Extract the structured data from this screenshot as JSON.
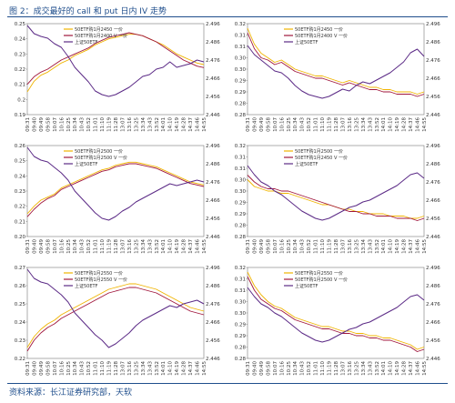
{
  "figure": {
    "title": "图 2：成交最好的 call 和 put 日内 IV 走势",
    "source": "资料来源：长江证券研究部，天软"
  },
  "colors": {
    "call": "#f0b400",
    "put": "#a0163c",
    "etf": "#5b2a86"
  },
  "chart_data": [
    {
      "type": "line",
      "position": "top-left",
      "time_labels": [
        "09:31",
        "09:40",
        "09:49",
        "09:58",
        "10:07",
        "10:16",
        "10:25",
        "10:34",
        "10:43",
        "10:52",
        "11:01",
        "11:10",
        "11:19",
        "11:28",
        "13:07",
        "13:16",
        "13:25",
        "13:34",
        "13:43",
        "13:52",
        "14:01",
        "14:10",
        "14:19",
        "14:28",
        "14:37",
        "14:46",
        "14:55"
      ],
      "ylim": [
        0.19,
        0.25
      ],
      "yticks": [
        "0.25",
        "0.24",
        "0.23",
        "0.22",
        "0.21",
        "0.2",
        "0.19"
      ],
      "y2lim": [
        0.2446,
        0.2496
      ],
      "y2ticks": [
        "2.496",
        "2.486",
        "2.476",
        "2.466",
        "2.456",
        "2.446"
      ],
      "legend_placement": "top-center",
      "series": [
        {
          "name": "50ETF购1月2450 一价",
          "axis": "left",
          "color_key": "call",
          "values": [
            0.205,
            0.212,
            0.216,
            0.218,
            0.221,
            0.224,
            0.226,
            0.229,
            0.231,
            0.233,
            0.236,
            0.238,
            0.24,
            0.241,
            0.242,
            0.243,
            0.243,
            0.242,
            0.24,
            0.238,
            0.236,
            0.233,
            0.23,
            0.228,
            0.226,
            0.224,
            0.223
          ]
        },
        {
          "name": "50ETF购1月2400 V 一价",
          "axis": "left",
          "color_key": "put",
          "values": [
            0.21,
            0.215,
            0.218,
            0.22,
            0.223,
            0.226,
            0.228,
            0.23,
            0.232,
            0.234,
            0.237,
            0.239,
            0.241,
            0.242,
            0.243,
            0.244,
            0.243,
            0.242,
            0.24,
            0.238,
            0.235,
            0.232,
            0.229,
            0.226,
            0.224,
            0.222,
            0.221
          ]
        },
        {
          "name": "上证50ETF",
          "axis": "right",
          "color_key": "etf",
          "values": [
            2.495,
            2.4905,
            2.489,
            2.488,
            2.485,
            2.483,
            2.478,
            2.472,
            2.468,
            2.464,
            2.459,
            2.457,
            2.456,
            2.457,
            2.459,
            2.461,
            2.464,
            2.467,
            2.468,
            2.471,
            2.472,
            2.475,
            2.472,
            2.473,
            2.474,
            2.476,
            2.475
          ]
        }
      ]
    },
    {
      "type": "line",
      "position": "top-right",
      "time_labels": [
        "09:31",
        "09:40",
        "09:49",
        "09:58",
        "10:07",
        "10:16",
        "10:25",
        "10:34",
        "10:43",
        "10:52",
        "11:01",
        "11:10",
        "11:19",
        "11:28",
        "13:07",
        "13:16",
        "13:25",
        "13:34",
        "13:43",
        "13:52",
        "14:01",
        "14:10",
        "14:19",
        "14:28",
        "14:37",
        "14:46",
        "14:55"
      ],
      "ylim": [
        0.28,
        0.32
      ],
      "yticks": [
        "0.32",
        "0.31",
        "0.31",
        "0.30",
        "0.30",
        "0.29",
        "0.29",
        "0.28",
        "0.28"
      ],
      "y2lim": [
        0.2446,
        0.2496
      ],
      "y2ticks": [
        "2.496",
        "2.486",
        "2.476",
        "2.466",
        "2.456",
        "2.446"
      ],
      "legend_placement": "top-center",
      "series": [
        {
          "name": "50ETF购1月2450 一价",
          "axis": "left",
          "color_key": "call",
          "values": [
            0.318,
            0.311,
            0.307,
            0.305,
            0.303,
            0.304,
            0.302,
            0.3,
            0.299,
            0.298,
            0.297,
            0.297,
            0.296,
            0.295,
            0.294,
            0.295,
            0.294,
            0.293,
            0.292,
            0.292,
            0.291,
            0.291,
            0.29,
            0.29,
            0.29,
            0.289,
            0.29
          ]
        },
        {
          "name": "50ETF购1月2400 V 一价",
          "axis": "left",
          "color_key": "put",
          "values": [
            0.316,
            0.309,
            0.305,
            0.304,
            0.302,
            0.303,
            0.301,
            0.299,
            0.298,
            0.297,
            0.296,
            0.296,
            0.295,
            0.294,
            0.293,
            0.294,
            0.293,
            0.292,
            0.291,
            0.291,
            0.29,
            0.29,
            0.289,
            0.289,
            0.289,
            0.288,
            0.289
          ]
        },
        {
          "name": "上证50ETF",
          "axis": "right",
          "color_key": "etf",
          "values": [
            2.484,
            2.479,
            2.476,
            2.473,
            2.47,
            2.469,
            2.466,
            2.462,
            2.459,
            2.457,
            2.456,
            2.455,
            2.456,
            2.458,
            2.46,
            2.459,
            2.462,
            2.464,
            2.463,
            2.465,
            2.467,
            2.469,
            2.472,
            2.475,
            2.48,
            2.482,
            2.478
          ]
        }
      ]
    },
    {
      "type": "line",
      "position": "middle-left",
      "time_labels": [
        "09:31",
        "09:40",
        "09:49",
        "09:58",
        "10:07",
        "10:16",
        "10:25",
        "10:34",
        "10:43",
        "10:52",
        "11:01",
        "11:10",
        "11:19",
        "11:28",
        "13:07",
        "13:16",
        "13:25",
        "13:34",
        "13:43",
        "13:52",
        "14:01",
        "14:10",
        "14:19",
        "14:28",
        "14:37",
        "14:46",
        "14:55"
      ],
      "ylim": [
        0.2,
        0.26
      ],
      "yticks": [
        "0.26",
        "0.25",
        "0.24",
        "0.23",
        "0.22",
        "0.21",
        "0.20"
      ],
      "y2lim": [
        0.2446,
        0.2496
      ],
      "y2ticks": [
        "2.496",
        "2.486",
        "2.476",
        "2.466",
        "2.456",
        "2.446"
      ],
      "legend_placement": "top-center",
      "series": [
        {
          "name": "50ETF购1月2500 一价",
          "axis": "left",
          "color_key": "call",
          "values": [
            0.215,
            0.22,
            0.224,
            0.226,
            0.228,
            0.232,
            0.234,
            0.236,
            0.238,
            0.24,
            0.242,
            0.244,
            0.245,
            0.247,
            0.248,
            0.249,
            0.249,
            0.248,
            0.247,
            0.246,
            0.244,
            0.242,
            0.24,
            0.238,
            0.236,
            0.235,
            0.234
          ]
        },
        {
          "name": "50ETF购1月2500 V 一价",
          "axis": "left",
          "color_key": "put",
          "values": [
            0.213,
            0.218,
            0.222,
            0.225,
            0.227,
            0.231,
            0.233,
            0.235,
            0.237,
            0.239,
            0.241,
            0.243,
            0.244,
            0.246,
            0.247,
            0.248,
            0.248,
            0.247,
            0.246,
            0.245,
            0.243,
            0.241,
            0.239,
            0.237,
            0.235,
            0.234,
            0.233
          ]
        },
        {
          "name": "上证50ETF",
          "axis": "right",
          "color_key": "etf",
          "values": [
            2.495,
            2.49,
            2.488,
            2.487,
            2.484,
            2.481,
            2.477,
            2.471,
            2.467,
            2.463,
            2.459,
            2.456,
            2.455,
            2.457,
            2.46,
            2.462,
            2.465,
            2.467,
            2.469,
            2.471,
            2.473,
            2.475,
            2.474,
            2.475,
            2.476,
            2.477,
            2.476
          ]
        }
      ]
    },
    {
      "type": "line",
      "position": "middle-right",
      "time_labels": [
        "09:31",
        "09:40",
        "09:49",
        "09:58",
        "10:07",
        "10:16",
        "10:25",
        "10:34",
        "10:43",
        "10:52",
        "11:01",
        "11:10",
        "11:19",
        "11:28",
        "13:07",
        "13:16",
        "13:25",
        "13:34",
        "13:43",
        "13:52",
        "14:01",
        "14:10",
        "14:19",
        "14:28",
        "14:37",
        "14:46",
        "14:55"
      ],
      "ylim": [
        0.28,
        0.32
      ],
      "yticks": [
        "0.32",
        "0.31",
        "0.31",
        "0.30",
        "0.30",
        "0.29",
        "0.29",
        "0.28",
        "0.28"
      ],
      "y2lim": [
        0.2446,
        0.2496
      ],
      "y2ticks": [
        "2.496",
        "2.486",
        "2.476",
        "2.466",
        "2.456",
        "2.446"
      ],
      "legend_placement": "top-center",
      "series": [
        {
          "name": "50ETF购1月2500 一价",
          "axis": "left",
          "color_key": "call",
          "values": [
            0.305,
            0.302,
            0.301,
            0.3,
            0.3,
            0.299,
            0.299,
            0.298,
            0.297,
            0.296,
            0.295,
            0.294,
            0.294,
            0.293,
            0.292,
            0.292,
            0.291,
            0.291,
            0.29,
            0.29,
            0.29,
            0.289,
            0.289,
            0.289,
            0.288,
            0.288,
            0.289
          ]
        },
        {
          "name": "50ETF购1月2450 V 一价",
          "axis": "left",
          "color_key": "put",
          "values": [
            0.307,
            0.304,
            0.302,
            0.301,
            0.301,
            0.3,
            0.3,
            0.299,
            0.298,
            0.297,
            0.296,
            0.295,
            0.294,
            0.293,
            0.292,
            0.291,
            0.291,
            0.29,
            0.29,
            0.289,
            0.289,
            0.289,
            0.288,
            0.288,
            0.288,
            0.287,
            0.288
          ]
        },
        {
          "name": "上证50ETF",
          "axis": "right",
          "color_key": "etf",
          "values": [
            2.485,
            2.48,
            2.476,
            2.474,
            2.471,
            2.469,
            2.466,
            2.463,
            2.46,
            2.458,
            2.456,
            2.455,
            2.456,
            2.458,
            2.46,
            2.462,
            2.463,
            2.465,
            2.466,
            2.468,
            2.47,
            2.472,
            2.474,
            2.477,
            2.48,
            2.481,
            2.478
          ]
        }
      ]
    },
    {
      "type": "line",
      "position": "bottom-left",
      "time_labels": [
        "09:31",
        "09:40",
        "09:49",
        "09:58",
        "10:07",
        "10:16",
        "10:25",
        "10:34",
        "10:43",
        "10:52",
        "11:01",
        "11:10",
        "11:19",
        "11:28",
        "13:07",
        "13:16",
        "13:25",
        "13:34",
        "13:43",
        "13:52",
        "14:01",
        "14:10",
        "14:19",
        "14:28",
        "14:37",
        "14:46",
        "14:55"
      ],
      "ylim": [
        0.22,
        0.27
      ],
      "yticks": [
        "0.27",
        "0.26",
        "0.25",
        "0.24",
        "0.23",
        "0.22"
      ],
      "y2lim": [
        0.2446,
        0.2496
      ],
      "y2ticks": [
        "2.496",
        "2.486",
        "2.476",
        "2.466",
        "2.456",
        "2.446"
      ],
      "legend_placement": "top-center",
      "series": [
        {
          "name": "50ETF购1月2550 一价",
          "axis": "left",
          "color_key": "call",
          "values": [
            0.226,
            0.232,
            0.236,
            0.239,
            0.241,
            0.244,
            0.246,
            0.248,
            0.25,
            0.252,
            0.254,
            0.256,
            0.258,
            0.259,
            0.26,
            0.261,
            0.261,
            0.26,
            0.259,
            0.258,
            0.256,
            0.254,
            0.252,
            0.25,
            0.248,
            0.247,
            0.246
          ]
        },
        {
          "name": "50ETF购1月2550 V 一价",
          "axis": "left",
          "color_key": "put",
          "values": [
            0.224,
            0.23,
            0.234,
            0.237,
            0.239,
            0.242,
            0.244,
            0.246,
            0.248,
            0.25,
            0.252,
            0.254,
            0.256,
            0.257,
            0.258,
            0.259,
            0.259,
            0.258,
            0.257,
            0.256,
            0.254,
            0.252,
            0.25,
            0.248,
            0.246,
            0.245,
            0.244
          ]
        },
        {
          "name": "上证50ETF",
          "axis": "right",
          "color_key": "etf",
          "values": [
            2.495,
            2.49,
            2.488,
            2.487,
            2.484,
            2.481,
            2.477,
            2.471,
            2.467,
            2.463,
            2.459,
            2.456,
            2.452,
            2.454,
            2.457,
            2.46,
            2.464,
            2.467,
            2.469,
            2.471,
            2.473,
            2.475,
            2.474,
            2.476,
            2.477,
            2.478,
            2.476
          ]
        }
      ]
    },
    {
      "type": "line",
      "position": "bottom-right",
      "time_labels": [
        "09:31",
        "09:40",
        "09:49",
        "09:58",
        "10:07",
        "10:16",
        "10:25",
        "10:34",
        "10:43",
        "10:52",
        "11:01",
        "11:10",
        "11:19",
        "11:28",
        "13:07",
        "13:16",
        "13:25",
        "13:34",
        "13:43",
        "13:52",
        "14:01",
        "14:10",
        "14:19",
        "14:28",
        "14:37",
        "14:46",
        "14:55"
      ],
      "ylim": [
        0.28,
        0.32
      ],
      "yticks": [
        "0.32",
        "0.31",
        "0.31",
        "0.30",
        "0.30",
        "0.29",
        "0.29",
        "0.28",
        "0.28"
      ],
      "y2lim": [
        0.2446,
        0.2496
      ],
      "y2ticks": [
        "2.496",
        "2.486",
        "2.476",
        "2.466",
        "2.456",
        "2.446"
      ],
      "legend_placement": "top-center",
      "series": [
        {
          "name": "50ETF购1月2550 一价",
          "axis": "left",
          "color_key": "call",
          "values": [
            0.318,
            0.312,
            0.308,
            0.305,
            0.303,
            0.302,
            0.3,
            0.298,
            0.297,
            0.296,
            0.295,
            0.294,
            0.294,
            0.293,
            0.292,
            0.292,
            0.291,
            0.291,
            0.29,
            0.29,
            0.289,
            0.289,
            0.288,
            0.287,
            0.286,
            0.284,
            0.285
          ]
        },
        {
          "name": "50ETF购1月2500 V 一价",
          "axis": "left",
          "color_key": "put",
          "values": [
            0.316,
            0.31,
            0.306,
            0.304,
            0.302,
            0.301,
            0.299,
            0.297,
            0.296,
            0.295,
            0.294,
            0.293,
            0.293,
            0.292,
            0.291,
            0.291,
            0.29,
            0.29,
            0.289,
            0.289,
            0.288,
            0.288,
            0.287,
            0.286,
            0.285,
            0.283,
            0.284
          ]
        },
        {
          "name": "上证50ETF",
          "axis": "right",
          "color_key": "etf",
          "values": [
            2.485,
            2.48,
            2.476,
            2.474,
            2.471,
            2.469,
            2.466,
            2.463,
            2.46,
            2.458,
            2.456,
            2.455,
            2.456,
            2.458,
            2.46,
            2.462,
            2.463,
            2.465,
            2.466,
            2.468,
            2.47,
            2.472,
            2.474,
            2.477,
            2.48,
            2.481,
            2.478
          ]
        }
      ]
    }
  ]
}
